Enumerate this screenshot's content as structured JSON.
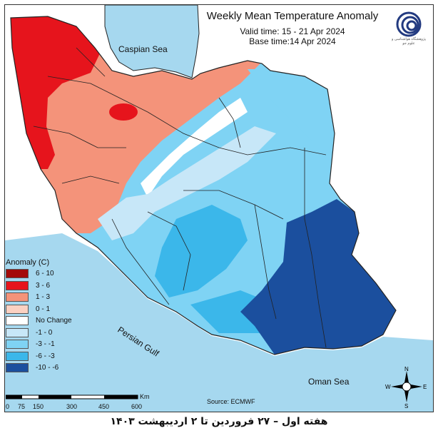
{
  "header": {
    "title": "Weekly Mean Temperature Anomaly",
    "valid_time": "Valid time: 15 - 21 Apr 2024",
    "base_time": "Base time:14 Apr 2024"
  },
  "labels": {
    "caspian": "Caspian Sea",
    "persian_gulf": "Persian Gulf",
    "oman_sea": "Oman Sea",
    "source": "Source: ECMWF"
  },
  "legend": {
    "title": "Anomaly (C)",
    "items": [
      {
        "label": "6 - 10",
        "color": "#a30a0a"
      },
      {
        "label": "3 - 6",
        "color": "#e6141c"
      },
      {
        "label": "1 - 3",
        "color": "#f4937a"
      },
      {
        "label": "0 - 1",
        "color": "#fbd1c2"
      },
      {
        "label": "No Change",
        "color": "#ffffff"
      },
      {
        "label": "-1 - 0",
        "color": "#c7e7f8"
      },
      {
        "label": "-3 - -1",
        "color": "#7fd3f4"
      },
      {
        "label": "-6 - -3",
        "color": "#3bb7ea"
      },
      {
        "label": "-10 - -6",
        "color": "#1b4f9e"
      }
    ]
  },
  "scale_bar": {
    "ticks": [
      "0",
      "75",
      "150",
      "300",
      "450",
      "600"
    ],
    "unit": "Km"
  },
  "compass": {
    "n": "N",
    "s": "S",
    "e": "E",
    "w": "W"
  },
  "logo": {
    "caption": "پژوهشگاه هواشناسی و علوم جو"
  },
  "footer": "هفته اول – ۲۷ فروردین تا ۲ اردیبهشت ۱۴۰۳",
  "colors": {
    "sea": "#a6d8ef",
    "land_outside": "#ffffff",
    "border": "#222222"
  }
}
